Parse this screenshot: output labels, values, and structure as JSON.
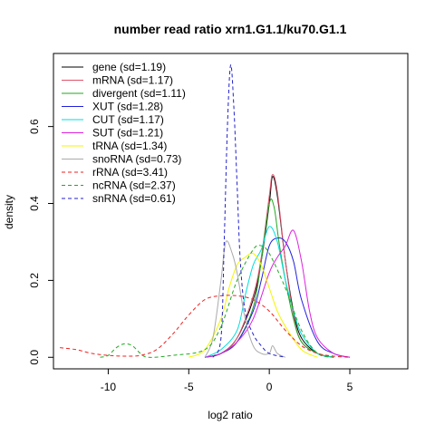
{
  "chart_data": {
    "type": "line",
    "title": "number read ratio xrn1.G1.1/ku70.G1.1",
    "xlabel": "log2 ratio",
    "ylabel": "density",
    "xlim": [
      -13.4,
      8.6
    ],
    "ylim": [
      -0.03,
      0.79
    ],
    "x_ticks": [
      -10,
      -5,
      0,
      5
    ],
    "y_ticks": [
      0.0,
      0.2,
      0.4,
      0.6
    ],
    "x_tick_labels": [
      "-10",
      "-5",
      "0",
      "5"
    ],
    "y_tick_labels": [
      "0.0",
      "0.2",
      "0.4",
      "0.6"
    ],
    "legend_position": "top-left",
    "series": [
      {
        "name": "gene (sd=1.19)",
        "color": "#000000",
        "dash": "solid",
        "points": [
          [
            -4,
            0
          ],
          [
            -3,
            0.01
          ],
          [
            -2,
            0.05
          ],
          [
            -1,
            0.15
          ],
          [
            -0.5,
            0.25
          ],
          [
            0,
            0.4
          ],
          [
            0.2,
            0.47
          ],
          [
            0.5,
            0.42
          ],
          [
            1,
            0.25
          ],
          [
            1.5,
            0.12
          ],
          [
            2,
            0.05
          ],
          [
            3,
            0.01
          ],
          [
            4,
            0
          ]
        ]
      },
      {
        "name": "mRNA (sd=1.17)",
        "color": "#df536b",
        "dash": "solid",
        "points": [
          [
            -4,
            0
          ],
          [
            -3,
            0.01
          ],
          [
            -2,
            0.05
          ],
          [
            -1,
            0.16
          ],
          [
            -0.5,
            0.26
          ],
          [
            0,
            0.42
          ],
          [
            0.2,
            0.475
          ],
          [
            0.5,
            0.43
          ],
          [
            1,
            0.25
          ],
          [
            1.5,
            0.11
          ],
          [
            2,
            0.04
          ],
          [
            3,
            0.01
          ],
          [
            4,
            0
          ]
        ]
      },
      {
        "name": "divergent (sd=1.11)",
        "color": "#22a722",
        "dash": "solid",
        "points": [
          [
            -4,
            0
          ],
          [
            -3,
            0.01
          ],
          [
            -2,
            0.04
          ],
          [
            -1,
            0.13
          ],
          [
            -0.5,
            0.25
          ],
          [
            0,
            0.4
          ],
          [
            0.3,
            0.39
          ],
          [
            0.6,
            0.3
          ],
          [
            1,
            0.2
          ],
          [
            1.5,
            0.1
          ],
          [
            2,
            0.04
          ],
          [
            3,
            0.01
          ],
          [
            4,
            0
          ]
        ]
      },
      {
        "name": "XUT (sd=1.28)",
        "color": "#2020dd",
        "dash": "solid",
        "points": [
          [
            -4,
            0
          ],
          [
            -3,
            0.01
          ],
          [
            -2,
            0.04
          ],
          [
            -1,
            0.12
          ],
          [
            -0.5,
            0.2
          ],
          [
            0,
            0.29
          ],
          [
            0.5,
            0.31
          ],
          [
            1,
            0.3
          ],
          [
            1.5,
            0.25
          ],
          [
            2,
            0.15
          ],
          [
            3,
            0.04
          ],
          [
            4,
            0.01
          ],
          [
            5,
            0
          ]
        ]
      },
      {
        "name": "CUT (sd=1.17)",
        "color": "#00dddd",
        "dash": "solid",
        "points": [
          [
            -4,
            0
          ],
          [
            -3,
            0.02
          ],
          [
            -2,
            0.07
          ],
          [
            -1.5,
            0.16
          ],
          [
            -1,
            0.24
          ],
          [
            -0.5,
            0.28
          ],
          [
            0,
            0.34
          ],
          [
            0.5,
            0.3
          ],
          [
            1,
            0.2
          ],
          [
            1.5,
            0.12
          ],
          [
            2,
            0.06
          ],
          [
            3,
            0.01
          ],
          [
            4,
            0
          ]
        ]
      },
      {
        "name": "SUT (sd=1.21)",
        "color": "#dd22dd",
        "dash": "solid",
        "points": [
          [
            -4,
            0
          ],
          [
            -3,
            0.01
          ],
          [
            -2,
            0.04
          ],
          [
            -1,
            0.1
          ],
          [
            0,
            0.22
          ],
          [
            0.5,
            0.26
          ],
          [
            1,
            0.29
          ],
          [
            1.5,
            0.33
          ],
          [
            2,
            0.25
          ],
          [
            2.5,
            0.12
          ],
          [
            3,
            0.05
          ],
          [
            4,
            0.01
          ],
          [
            5,
            0
          ]
        ]
      },
      {
        "name": "tRNA (sd=1.34)",
        "color": "#f5f500",
        "dash": "solid",
        "points": [
          [
            -5,
            0
          ],
          [
            -4,
            0.02
          ],
          [
            -3,
            0.1
          ],
          [
            -2.5,
            0.18
          ],
          [
            -2,
            0.24
          ],
          [
            -1.5,
            0.26
          ],
          [
            -1,
            0.27
          ],
          [
            -0.5,
            0.24
          ],
          [
            0,
            0.18
          ],
          [
            0.5,
            0.12
          ],
          [
            1,
            0.08
          ],
          [
            2,
            0.02
          ],
          [
            3,
            0
          ]
        ]
      },
      {
        "name": "snoRNA (sd=0.73)",
        "color": "#aaaaaa",
        "dash": "solid",
        "points": [
          [
            -4,
            0
          ],
          [
            -3.5,
            0.05
          ],
          [
            -3,
            0.2
          ],
          [
            -2.7,
            0.3
          ],
          [
            -2.3,
            0.27
          ],
          [
            -2,
            0.22
          ],
          [
            -1.5,
            0.1
          ],
          [
            -1,
            0.03
          ],
          [
            -0.5,
            0.01
          ],
          [
            0,
            0.01
          ],
          [
            0.2,
            0.03
          ],
          [
            0.5,
            0.01
          ],
          [
            1,
            0
          ]
        ]
      },
      {
        "name": "rRNA (sd=3.41)",
        "color": "#ee2222",
        "dash": "dashed",
        "points": [
          [
            -13,
            0.025
          ],
          [
            -12,
            0.02
          ],
          [
            -11,
            0.01
          ],
          [
            -10,
            0.005
          ],
          [
            -9,
            0.003
          ],
          [
            -8,
            0.005
          ],
          [
            -7,
            0.02
          ],
          [
            -6,
            0.06
          ],
          [
            -5,
            0.11
          ],
          [
            -4,
            0.15
          ],
          [
            -3,
            0.16
          ],
          [
            -2,
            0.16
          ],
          [
            -1,
            0.15
          ],
          [
            0,
            0.12
          ],
          [
            1,
            0.07
          ],
          [
            2,
            0.03
          ],
          [
            3,
            0.01
          ],
          [
            4,
            0.003
          ],
          [
            5,
            0
          ]
        ]
      },
      {
        "name": "ncRNA (sd=2.37)",
        "color": "#22aa22",
        "dash": "dashed",
        "points": [
          [
            -10.5,
            0
          ],
          [
            -10,
            0.005
          ],
          [
            -9.5,
            0.025
          ],
          [
            -9,
            0.035
          ],
          [
            -8.5,
            0.03
          ],
          [
            -8,
            0.01
          ],
          [
            -7.5,
            0
          ],
          [
            -6,
            0.005
          ],
          [
            -4,
            0.02
          ],
          [
            -3,
            0.08
          ],
          [
            -2,
            0.2
          ],
          [
            -1,
            0.28
          ],
          [
            -0.5,
            0.29
          ],
          [
            0,
            0.27
          ],
          [
            1,
            0.18
          ],
          [
            2,
            0.07
          ],
          [
            3,
            0.01
          ],
          [
            4,
            0
          ]
        ]
      },
      {
        "name": "snRNA (sd=0.61)",
        "color": "#2222cc",
        "dash": "dashed",
        "points": [
          [
            -3.5,
            0
          ],
          [
            -3,
            0.05
          ],
          [
            -2.8,
            0.3
          ],
          [
            -2.6,
            0.6
          ],
          [
            -2.4,
            0.76
          ],
          [
            -2.2,
            0.65
          ],
          [
            -2,
            0.45
          ],
          [
            -1.8,
            0.25
          ],
          [
            -1.5,
            0.12
          ],
          [
            -1,
            0.06
          ],
          [
            -0.5,
            0.03
          ],
          [
            0,
            0.01
          ],
          [
            1,
            0
          ]
        ]
      }
    ]
  }
}
